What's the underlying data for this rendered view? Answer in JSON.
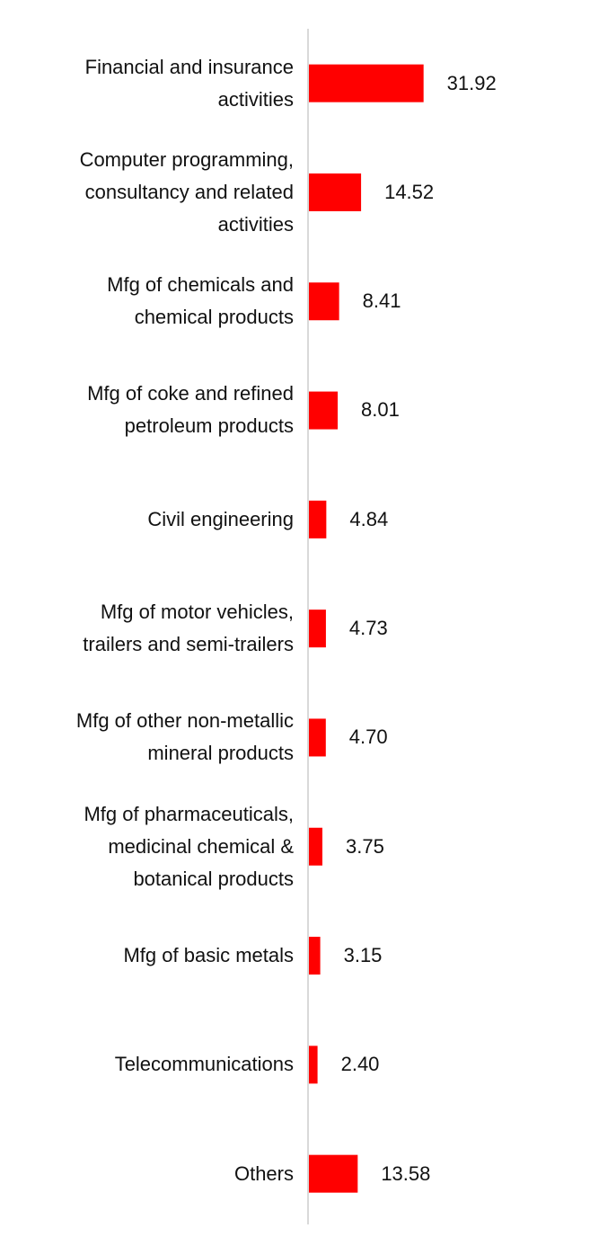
{
  "chart_data": {
    "type": "bar",
    "orientation": "horizontal",
    "categories": [
      "Financial and insurance activities",
      "Computer programming, consultancy and related activities",
      "Mfg of chemicals and chemical products",
      "Mfg of coke and refined petroleum products",
      "Civil engineering",
      "Mfg of motor vehicles, trailers and semi-trailers",
      "Mfg of other non-metallic mineral products",
      "Mfg of pharmaceuticals, medicinal chemical & botanical products",
      "Mfg of basic metals",
      "Telecommunications",
      "Others"
    ],
    "values": [
      31.92,
      14.52,
      8.41,
      8.01,
      4.84,
      4.73,
      4.7,
      3.75,
      3.15,
      2.4,
      13.58
    ],
    "value_labels": [
      "31.92",
      "14.52",
      "8.41",
      "8.01",
      "4.84",
      "4.73",
      "4.70",
      "3.75",
      "3.15",
      "2.40",
      "13.58"
    ],
    "color": "#ff0000"
  }
}
